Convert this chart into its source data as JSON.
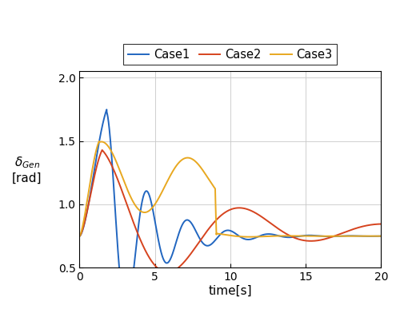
{
  "title": "",
  "xlabel": "time[s]",
  "xlim": [
    0,
    20
  ],
  "ylim": [
    0.5,
    2.05
  ],
  "yticks": [
    0.5,
    1.0,
    1.5,
    2.0
  ],
  "xticks": [
    0,
    5,
    10,
    15,
    20
  ],
  "legend": [
    "Case1",
    "Case2",
    "Case3"
  ],
  "colors": [
    "#2166c0",
    "#d6431e",
    "#e8a820"
  ],
  "linewidth": 1.4,
  "grid": true,
  "figsize": [
    5.0,
    3.87
  ],
  "dpi": 100
}
